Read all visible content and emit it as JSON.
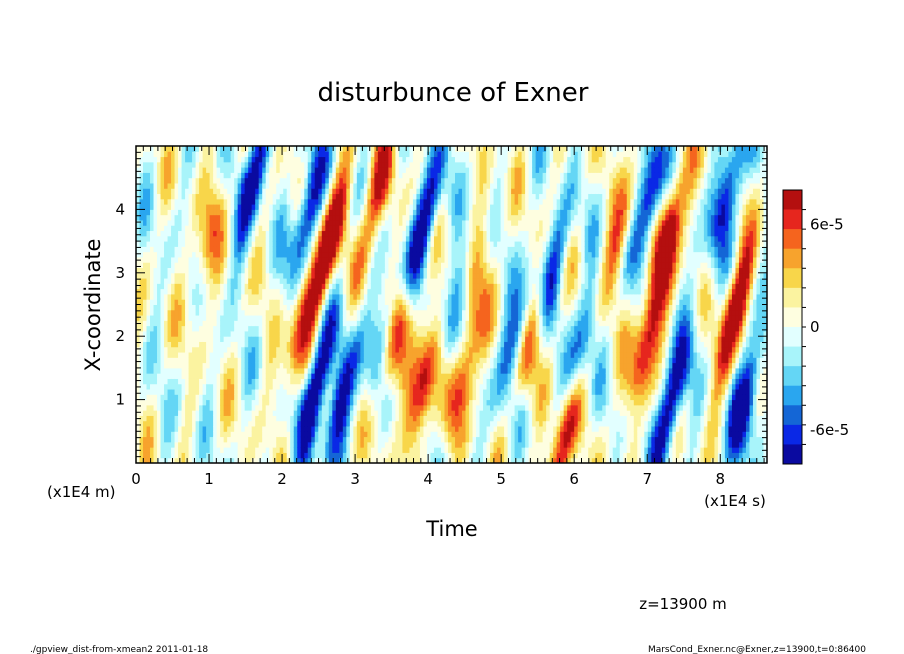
{
  "chart_data": {
    "type": "heatmap",
    "title": "disturbunce of Exner",
    "xlabel": "Time",
    "ylabel": "X-coordinate",
    "x_unit": "(x1E4 s)",
    "y_unit": "(x1E4 m)",
    "xlim": [
      0,
      8.64
    ],
    "ylim": [
      0,
      5
    ],
    "x_ticks": [
      "0",
      "1",
      "2",
      "3",
      "4",
      "5",
      "6",
      "7",
      "8"
    ],
    "y_ticks": [
      "1",
      "2",
      "3",
      "4"
    ],
    "colorbar": {
      "labels": [
        "6e-5",
        "0",
        "-6e-5"
      ],
      "label_values": [
        6e-05,
        0,
        -6e-05
      ],
      "levels": [
        8e-05,
        7e-05,
        6e-05,
        5e-05,
        4e-05,
        3e-05,
        2e-05,
        1e-05,
        0,
        -1e-05,
        -2e-05,
        -3e-05,
        -4e-05,
        -5e-05,
        -6e-05,
        -7e-05,
        -8e-05
      ],
      "colors": [
        "#b40f0f",
        "#e6261e",
        "#f5641e",
        "#f7a32d",
        "#f8d64a",
        "#fbf3a0",
        "#fefee0",
        "#e2ffff",
        "#a8f4fa",
        "#64d6f5",
        "#2aa6ef",
        "#1466d6",
        "#0a28e6",
        "#0a0aa0"
      ]
    },
    "streaks": [
      {
        "t": 1.0,
        "x": 3.5,
        "amp": 0.5
      },
      {
        "t": 1.6,
        "x": 4.5,
        "amp": -0.9
      },
      {
        "t": 2.25,
        "x": 2.2,
        "amp": 0.7
      },
      {
        "t": 2.35,
        "x": 4.0,
        "amp": -0.9
      },
      {
        "t": 2.45,
        "x": 1.2,
        "amp": -1.0
      },
      {
        "t": 2.65,
        "x": 3.5,
        "amp": 1.0
      },
      {
        "t": 2.8,
        "x": 1.0,
        "amp": -0.9
      },
      {
        "t": 3.3,
        "x": 4.2,
        "amp": 0.7
      },
      {
        "t": 3.4,
        "x": 2.0,
        "amp": -0.6
      },
      {
        "t": 3.55,
        "x": 2.0,
        "amp": 0.9
      },
      {
        "t": 3.95,
        "x": 3.8,
        "amp": -1.0
      },
      {
        "t": 3.95,
        "x": 1.3,
        "amp": 1.0
      },
      {
        "t": 4.4,
        "x": 2.5,
        "amp": -0.9
      },
      {
        "t": 4.5,
        "x": 1.5,
        "amp": 0.8
      },
      {
        "t": 4.6,
        "x": 3.0,
        "amp": 0.6
      },
      {
        "t": 5.2,
        "x": 2.0,
        "amp": -0.7
      },
      {
        "t": 5.45,
        "x": 2.1,
        "amp": 0.8
      },
      {
        "t": 5.7,
        "x": 3.0,
        "amp": -0.8
      },
      {
        "t": 5.85,
        "x": 0.4,
        "amp": 0.9
      },
      {
        "t": 6.1,
        "x": 1.8,
        "amp": -0.7
      },
      {
        "t": 6.6,
        "x": 3.5,
        "amp": 0.6
      },
      {
        "t": 7.05,
        "x": 4.2,
        "amp": -1.0
      },
      {
        "t": 7.3,
        "x": 3.7,
        "amp": 1.0
      },
      {
        "t": 7.35,
        "x": 1.0,
        "amp": -1.0
      },
      {
        "t": 7.0,
        "x": 2.0,
        "amp": 0.9
      },
      {
        "t": 8.1,
        "x": 4.3,
        "amp": -0.9
      },
      {
        "t": 8.2,
        "x": 2.4,
        "amp": 1.0
      },
      {
        "t": 8.35,
        "x": 1.0,
        "amp": -1.0
      }
    ]
  },
  "annotations": {
    "z_label": "z=13900 m",
    "footer_left": "./gpview_dist-from-xmean2  2011-01-18",
    "footer_right": "MarsCond_Exner.nc@Exner,z=13900,t=0:86400"
  }
}
